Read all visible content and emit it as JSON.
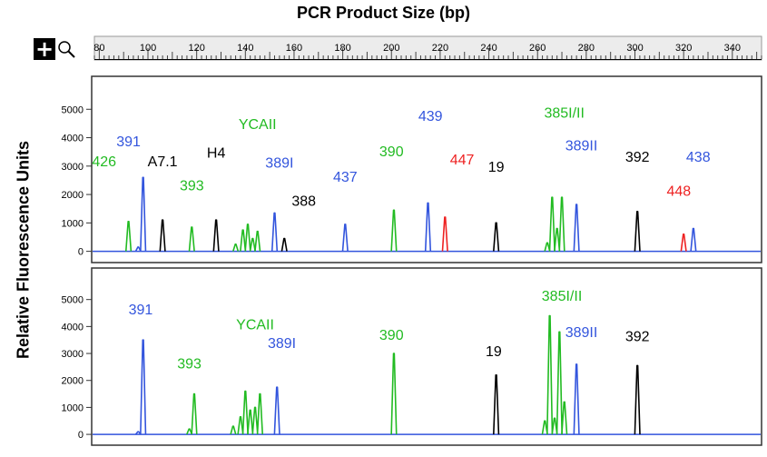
{
  "chart_data": {
    "type": "line",
    "title": "PCR Product Size (bp)",
    "ylabel": "Relative Fluorescence Units",
    "xlim": [
      78,
      352
    ],
    "x_ticks": [
      80,
      100,
      120,
      140,
      160,
      180,
      200,
      220,
      240,
      260,
      280,
      300,
      320,
      340
    ],
    "y_ticks": [
      0,
      1000,
      2000,
      3000,
      4000,
      5000
    ],
    "grid": false,
    "panels": [
      {
        "ylim": [
          -300,
          6000
        ],
        "peaks": [
          {
            "x": 92,
            "height": 1050,
            "color": "#22bb22"
          },
          {
            "x": 96,
            "height": 150,
            "color": "#3355dd"
          },
          {
            "x": 98,
            "height": 2600,
            "color": "#3355dd"
          },
          {
            "x": 106,
            "height": 1100,
            "color": "#000000"
          },
          {
            "x": 118,
            "height": 850,
            "color": "#22bb22"
          },
          {
            "x": 128,
            "height": 1100,
            "color": "#000000"
          },
          {
            "x": 136,
            "height": 250,
            "color": "#22bb22"
          },
          {
            "x": 139,
            "height": 750,
            "color": "#22bb22"
          },
          {
            "x": 141,
            "height": 950,
            "color": "#22bb22"
          },
          {
            "x": 143,
            "height": 450,
            "color": "#22bb22"
          },
          {
            "x": 145,
            "height": 700,
            "color": "#22bb22"
          },
          {
            "x": 152,
            "height": 1350,
            "color": "#3355dd"
          },
          {
            "x": 156,
            "height": 450,
            "color": "#000000"
          },
          {
            "x": 181,
            "height": 950,
            "color": "#3355dd"
          },
          {
            "x": 201,
            "height": 1450,
            "color": "#22bb22"
          },
          {
            "x": 215,
            "height": 1700,
            "color": "#3355dd"
          },
          {
            "x": 222,
            "height": 1200,
            "color": "#ee2222"
          },
          {
            "x": 243,
            "height": 1000,
            "color": "#000000"
          },
          {
            "x": 264,
            "height": 300,
            "color": "#22bb22"
          },
          {
            "x": 266,
            "height": 1900,
            "color": "#22bb22"
          },
          {
            "x": 268,
            "height": 800,
            "color": "#22bb22"
          },
          {
            "x": 270,
            "height": 1900,
            "color": "#22bb22"
          },
          {
            "x": 276,
            "height": 1650,
            "color": "#3355dd"
          },
          {
            "x": 301,
            "height": 1400,
            "color": "#000000"
          },
          {
            "x": 320,
            "height": 600,
            "color": "#ee2222"
          },
          {
            "x": 324,
            "height": 800,
            "color": "#3355dd"
          }
        ],
        "labels": [
          {
            "text": "426",
            "x": 82,
            "y": 3000,
            "color": "#22bb22"
          },
          {
            "text": "391",
            "x": 92,
            "y": 3700,
            "color": "#3355dd"
          },
          {
            "text": "A7.1",
            "x": 106,
            "y": 3000,
            "color": "#000000"
          },
          {
            "text": "393",
            "x": 118,
            "y": 2150,
            "color": "#22bb22"
          },
          {
            "text": "H4",
            "x": 128,
            "y": 3300,
            "color": "#000000"
          },
          {
            "text": "YCAII",
            "x": 145,
            "y": 4300,
            "color": "#22bb22"
          },
          {
            "text": "389I",
            "x": 154,
            "y": 2950,
            "color": "#3355dd"
          },
          {
            "text": "388",
            "x": 164,
            "y": 1600,
            "color": "#000000"
          },
          {
            "text": "437",
            "x": 181,
            "y": 2450,
            "color": "#3355dd"
          },
          {
            "text": "390",
            "x": 200,
            "y": 3350,
            "color": "#22bb22"
          },
          {
            "text": "439",
            "x": 216,
            "y": 4600,
            "color": "#3355dd"
          },
          {
            "text": "447",
            "x": 229,
            "y": 3050,
            "color": "#ee2222"
          },
          {
            "text": "19",
            "x": 243,
            "y": 2800,
            "color": "#000000"
          },
          {
            "text": "385I/II",
            "x": 271,
            "y": 4700,
            "color": "#22bb22"
          },
          {
            "text": "389II",
            "x": 278,
            "y": 3550,
            "color": "#3355dd"
          },
          {
            "text": "392",
            "x": 301,
            "y": 3150,
            "color": "#000000"
          },
          {
            "text": "448",
            "x": 318,
            "y": 1950,
            "color": "#ee2222"
          },
          {
            "text": "438",
            "x": 326,
            "y": 3150,
            "color": "#3355dd"
          }
        ]
      },
      {
        "ylim": [
          -300,
          6000
        ],
        "peaks": [
          {
            "x": 96,
            "height": 100,
            "color": "#3355dd"
          },
          {
            "x": 98,
            "height": 3500,
            "color": "#3355dd"
          },
          {
            "x": 117,
            "height": 200,
            "color": "#22bb22"
          },
          {
            "x": 119,
            "height": 1500,
            "color": "#22bb22"
          },
          {
            "x": 135,
            "height": 300,
            "color": "#22bb22"
          },
          {
            "x": 138,
            "height": 650,
            "color": "#22bb22"
          },
          {
            "x": 140,
            "height": 1600,
            "color": "#22bb22"
          },
          {
            "x": 142,
            "height": 900,
            "color": "#22bb22"
          },
          {
            "x": 144,
            "height": 1000,
            "color": "#22bb22"
          },
          {
            "x": 146,
            "height": 1500,
            "color": "#22bb22"
          },
          {
            "x": 153,
            "height": 1750,
            "color": "#3355dd"
          },
          {
            "x": 201,
            "height": 3000,
            "color": "#22bb22"
          },
          {
            "x": 243,
            "height": 2200,
            "color": "#000000"
          },
          {
            "x": 263,
            "height": 500,
            "color": "#22bb22"
          },
          {
            "x": 265,
            "height": 4400,
            "color": "#22bb22"
          },
          {
            "x": 267,
            "height": 600,
            "color": "#22bb22"
          },
          {
            "x": 269,
            "height": 3800,
            "color": "#22bb22"
          },
          {
            "x": 271,
            "height": 1200,
            "color": "#22bb22"
          },
          {
            "x": 276,
            "height": 2600,
            "color": "#3355dd"
          },
          {
            "x": 301,
            "height": 2550,
            "color": "#000000"
          }
        ],
        "labels": [
          {
            "text": "391",
            "x": 97,
            "y": 4450,
            "color": "#3355dd"
          },
          {
            "text": "YCAII",
            "x": 144,
            "y": 3900,
            "color": "#22bb22"
          },
          {
            "text": "393",
            "x": 117,
            "y": 2450,
            "color": "#22bb22"
          },
          {
            "text": "389I",
            "x": 155,
            "y": 3200,
            "color": "#3355dd"
          },
          {
            "text": "390",
            "x": 200,
            "y": 3500,
            "color": "#22bb22"
          },
          {
            "text": "19",
            "x": 242,
            "y": 2900,
            "color": "#000000"
          },
          {
            "text": "385I/II",
            "x": 270,
            "y": 4950,
            "color": "#22bb22"
          },
          {
            "text": "389II",
            "x": 278,
            "y": 3600,
            "color": "#3355dd"
          },
          {
            "text": "392",
            "x": 301,
            "y": 3450,
            "color": "#000000"
          }
        ]
      }
    ]
  }
}
